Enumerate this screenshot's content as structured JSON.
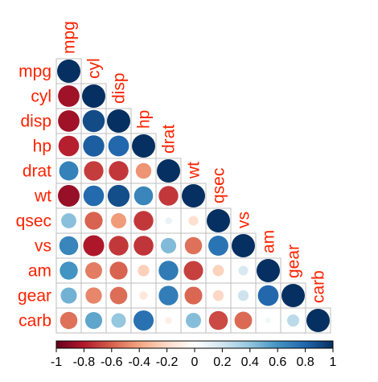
{
  "chart_data": {
    "type": "heatmap",
    "style": "circle-correlogram-lower-triangle",
    "variables": [
      "mpg",
      "cyl",
      "disp",
      "hp",
      "drat",
      "wt",
      "qsec",
      "vs",
      "am",
      "gear",
      "carb"
    ],
    "matrix": [
      [
        1.0,
        -0.85,
        -0.85,
        -0.78,
        0.68,
        -0.87,
        0.42,
        0.66,
        0.6,
        0.48,
        -0.55
      ],
      [
        -0.85,
        1.0,
        0.9,
        0.83,
        -0.7,
        0.78,
        -0.59,
        -0.81,
        -0.52,
        -0.49,
        0.53
      ],
      [
        -0.85,
        0.9,
        1.0,
        0.79,
        -0.71,
        0.89,
        -0.43,
        -0.71,
        -0.59,
        -0.56,
        0.39
      ],
      [
        -0.78,
        0.83,
        0.79,
        1.0,
        -0.45,
        0.66,
        -0.71,
        -0.72,
        -0.24,
        -0.13,
        0.75
      ],
      [
        0.68,
        -0.7,
        -0.71,
        -0.45,
        1.0,
        -0.71,
        0.09,
        0.44,
        0.71,
        0.7,
        -0.09
      ],
      [
        -0.87,
        0.78,
        0.89,
        0.66,
        -0.71,
        1.0,
        -0.17,
        -0.55,
        -0.69,
        -0.58,
        0.43
      ],
      [
        0.42,
        -0.59,
        -0.43,
        -0.71,
        0.09,
        -0.17,
        1.0,
        0.74,
        -0.23,
        -0.21,
        -0.66
      ],
      [
        0.66,
        -0.81,
        -0.71,
        -0.72,
        0.44,
        -0.55,
        0.74,
        1.0,
        0.17,
        0.21,
        -0.57
      ],
      [
        0.6,
        -0.52,
        -0.59,
        -0.24,
        0.71,
        -0.69,
        -0.23,
        0.17,
        1.0,
        0.79,
        0.06
      ],
      [
        0.48,
        -0.49,
        -0.56,
        -0.13,
        0.7,
        -0.58,
        -0.21,
        0.21,
        0.79,
        1.0,
        0.27
      ],
      [
        -0.55,
        0.53,
        0.39,
        0.75,
        -0.09,
        0.43,
        -0.66,
        -0.57,
        0.06,
        0.27,
        1.0
      ]
    ],
    "colorbar": {
      "range": [
        -1,
        1
      ],
      "tick_values": [
        -1,
        -0.8,
        -0.6,
        -0.4,
        -0.2,
        0,
        0.2,
        0.4,
        0.6,
        0.8,
        1
      ],
      "tick_labels": [
        "-1",
        "-0.8",
        "-0.6",
        "-0.4",
        "-0.2",
        "0",
        "0.2",
        "0.4",
        "0.6",
        "0.8",
        "1"
      ],
      "colors": [
        "#67001F",
        "#B2182B",
        "#D6604D",
        "#F4A582",
        "#FDDBC7",
        "#FFFFFF",
        "#D1E5F0",
        "#92C5DE",
        "#4393C3",
        "#2166AC",
        "#053061"
      ]
    },
    "label_color": "#FF2200",
    "grid_color": "#BEBEBE"
  }
}
